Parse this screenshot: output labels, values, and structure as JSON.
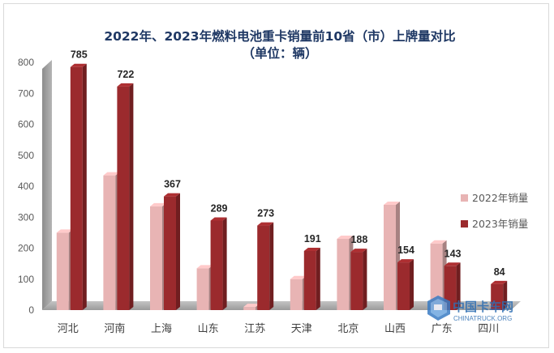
{
  "chart_data": {
    "type": "bar",
    "title": "2022年、2023年燃料电池重卡销量前10省（市）上牌量对比",
    "subtitle": "（单位：辆）",
    "categories": [
      "河北",
      "河南",
      "上海",
      "山东",
      "江苏",
      "天津",
      "北京",
      "山西",
      "广东",
      "四川"
    ],
    "series": [
      {
        "name": "2022年销量",
        "values": [
          250,
          435,
          335,
          135,
          10,
          100,
          230,
          340,
          215,
          0
        ],
        "color": "#e8b4b4"
      },
      {
        "name": "2023年销量",
        "values": [
          785,
          722,
          367,
          289,
          273,
          191,
          188,
          154,
          143,
          84
        ],
        "color": "#9b2a2d",
        "data_labels": true
      }
    ],
    "ylim": [
      0,
      800
    ],
    "yticks": [
      0,
      100,
      200,
      300,
      400,
      500,
      600,
      700,
      800
    ],
    "grid": false,
    "legend_position": "right",
    "style": "3d-column"
  },
  "watermark": {
    "text": "中国卡车网",
    "url": "CHINATRUCK.ORG"
  }
}
